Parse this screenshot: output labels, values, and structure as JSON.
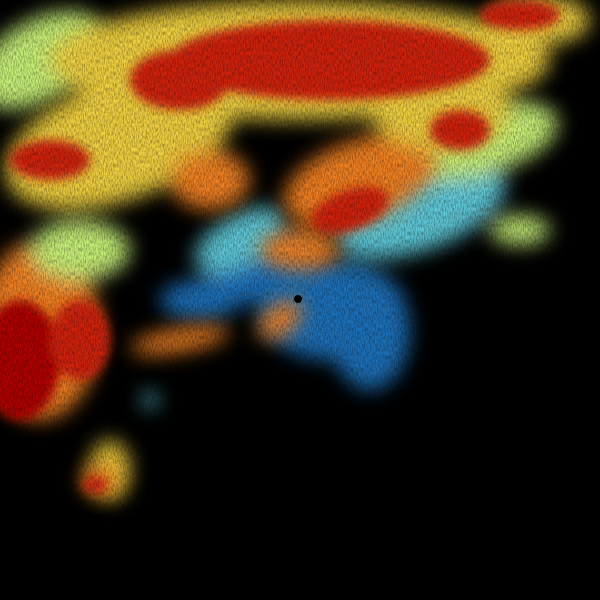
{
  "image": {
    "kind": "weather radar reflectivity",
    "background_color": "#000000",
    "palette": {
      "light_echo": "#1f6fb8",
      "cyan": "#5fc8d8",
      "green_yellow": "#c8f078",
      "yellow": "#f0d040",
      "orange": "#f08020",
      "red": "#d02010",
      "dark_red": "#b00000"
    },
    "radar_site_marker_color": "#000000"
  }
}
